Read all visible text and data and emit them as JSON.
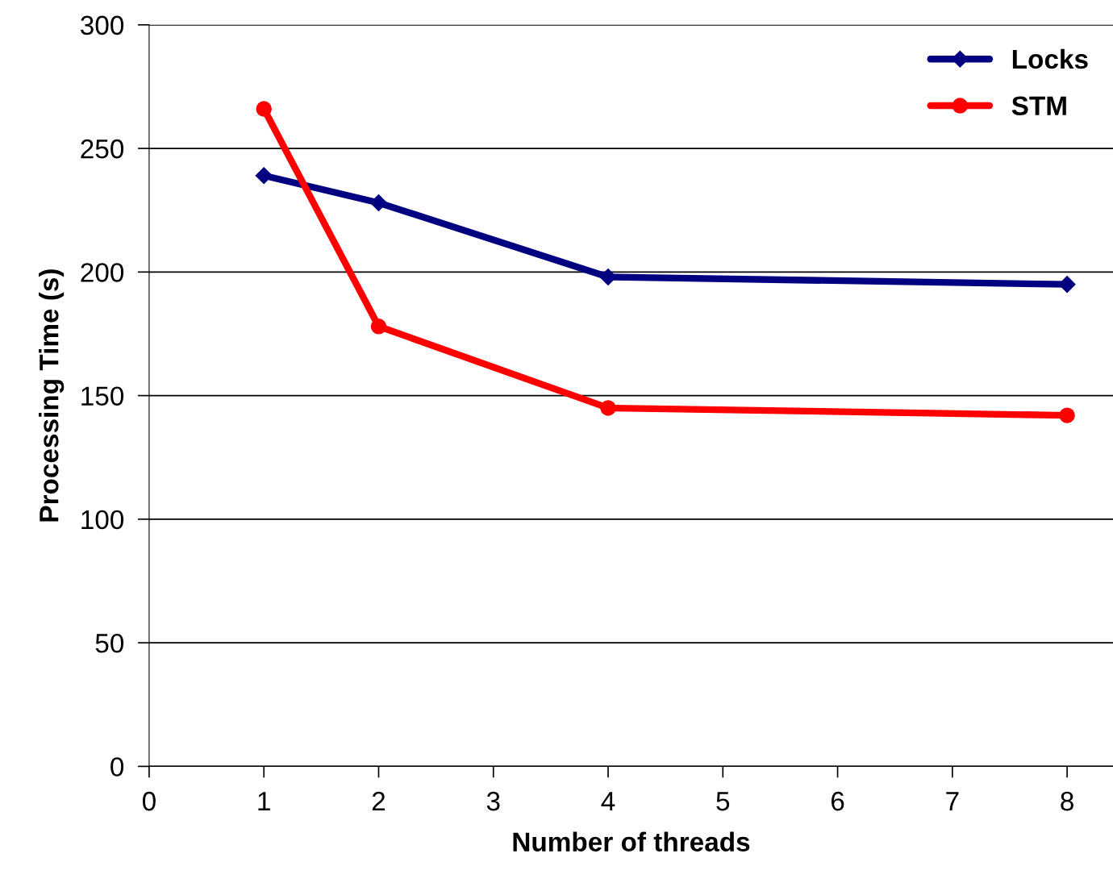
{
  "chart_data": {
    "type": "line",
    "xlabel": "Number of threads",
    "ylabel": "Processing Time (s)",
    "x": [
      1,
      2,
      4,
      8
    ],
    "series": [
      {
        "name": "Locks",
        "color": "#000080",
        "marker": "diamond",
        "values": [
          239,
          228,
          198,
          195
        ]
      },
      {
        "name": "STM",
        "color": "#ff0000",
        "marker": "circle",
        "values": [
          266,
          178,
          145,
          142
        ]
      }
    ],
    "xlim": [
      0,
      8.4
    ],
    "xticks": [
      0,
      1,
      2,
      3,
      4,
      5,
      6,
      7,
      8
    ],
    "ylim": [
      0,
      300
    ],
    "yticks": [
      0,
      50,
      100,
      150,
      200,
      250,
      300
    ],
    "grid": "y",
    "legend": "top right",
    "line_style": "solid"
  }
}
